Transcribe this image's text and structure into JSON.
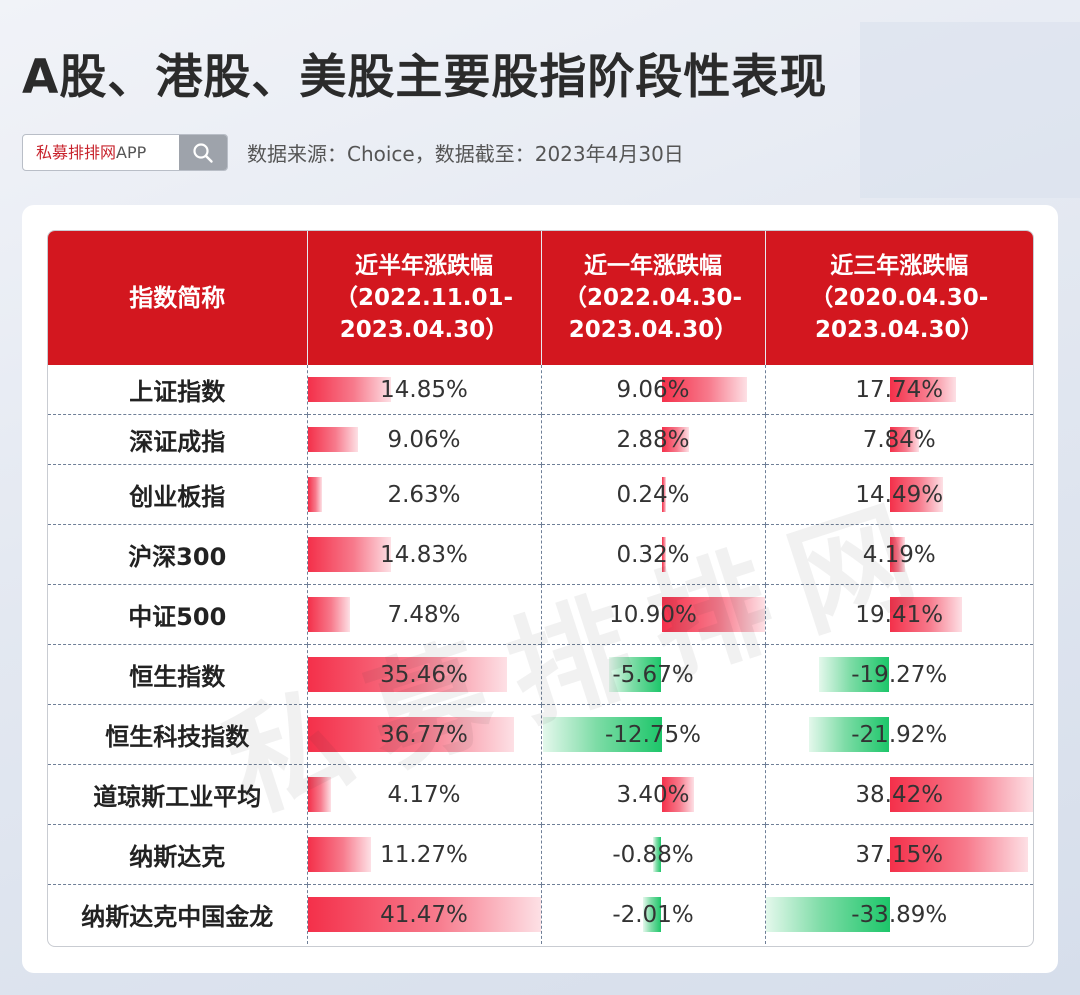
{
  "title": "A股、港股、美股主要股指阶段性表现",
  "search": {
    "brand_text": "私募排排网",
    "app_text": "APP"
  },
  "source": "数据来源：Choice，数据截至：2023年4月30日",
  "watermark": "私募排排网",
  "colors": {
    "header_red": "#d3171f",
    "positive": "#f4304a",
    "negative": "#1dc66a"
  },
  "chart_data": {
    "type": "table",
    "columns": [
      {
        "lines": [
          "指数简称"
        ]
      },
      {
        "lines": [
          "近半年涨跌幅",
          "（2022.11.01-",
          "2023.04.30）"
        ]
      },
      {
        "lines": [
          "近一年涨跌幅",
          "（2022.04.30-",
          "2023.04.30）"
        ]
      },
      {
        "lines": [
          "近三年涨跌幅",
          "（2020.04.30-",
          "2023.04.30）"
        ]
      }
    ],
    "rows": [
      {
        "name": "上证指数",
        "values": [
          14.85,
          9.06,
          17.74
        ],
        "labels": [
          "14.85%",
          "9.06%",
          "17.74%"
        ]
      },
      {
        "name": "深证成指",
        "values": [
          9.06,
          2.88,
          7.84
        ],
        "labels": [
          "9.06%",
          "2.88%",
          "7.84%"
        ]
      },
      {
        "name": "创业板指",
        "values": [
          2.63,
          0.24,
          14.49
        ],
        "labels": [
          "2.63%",
          "0.24%",
          "14.49%"
        ]
      },
      {
        "name": "沪深300",
        "values": [
          14.83,
          0.32,
          4.19
        ],
        "labels": [
          "14.83%",
          "0.32%",
          "4.19%"
        ]
      },
      {
        "name": "中证500",
        "values": [
          7.48,
          10.9,
          19.41
        ],
        "labels": [
          "7.48%",
          "10.90%",
          "19.41%"
        ]
      },
      {
        "name": "恒生指数",
        "values": [
          35.46,
          -5.67,
          -19.27
        ],
        "labels": [
          "35.46%",
          "-5.67%",
          "-19.27%"
        ]
      },
      {
        "name": "恒生科技指数",
        "values": [
          36.77,
          -12.75,
          -21.92
        ],
        "labels": [
          "36.77%",
          "-12.75%",
          "-21.92%"
        ]
      },
      {
        "name": "道琼斯工业平均",
        "values": [
          4.17,
          3.4,
          38.42
        ],
        "labels": [
          "4.17%",
          "3.40%",
          "38.42%"
        ]
      },
      {
        "name": "纳斯达克",
        "values": [
          11.27,
          -0.88,
          37.15
        ],
        "labels": [
          "11.27%",
          "-0.88%",
          "37.15%"
        ]
      },
      {
        "name": "纳斯达克中国金龙",
        "values": [
          41.47,
          -2.01,
          -33.89
        ],
        "labels": [
          "41.47%",
          "-2.01%",
          "-33.89%"
        ]
      }
    ]
  }
}
